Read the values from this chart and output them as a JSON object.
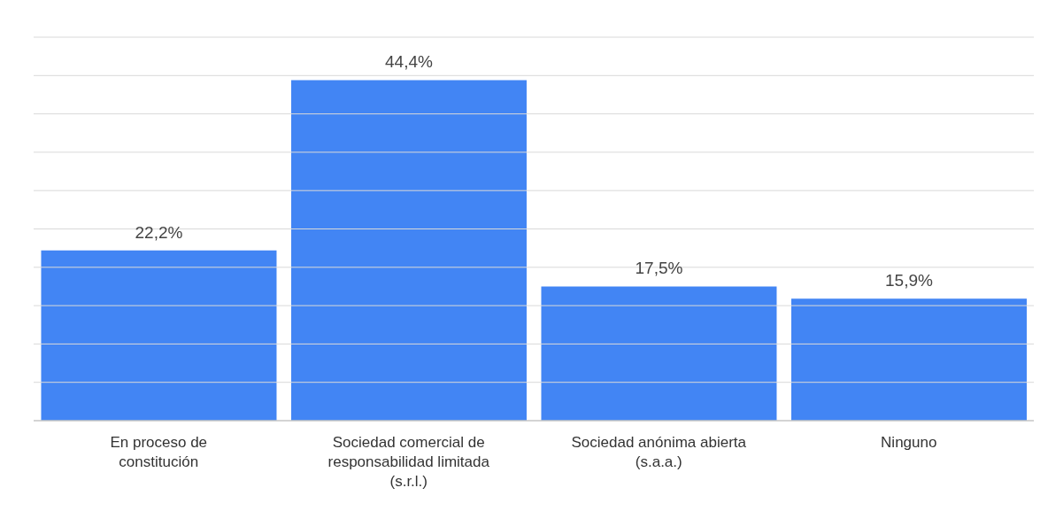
{
  "chart_data": {
    "type": "bar",
    "categories": [
      "En proceso de constitución",
      "Sociedad comercial de responsabilidad limitada (s.r.l.)",
      "Sociedad anónima abierta (s.a.a.)",
      "Ninguno"
    ],
    "values": [
      22.2,
      44.4,
      17.5,
      15.9
    ],
    "value_labels": [
      "22,2%",
      "44,4%",
      "17,5%",
      "15,9%"
    ],
    "color": "#4285f4",
    "ylim": [
      0,
      50
    ],
    "yticks": [
      {
        "value": 0,
        "label": null
      },
      {
        "value": 5,
        "label": null
      },
      {
        "value": 10,
        "label": null
      },
      {
        "value": 15,
        "label": null
      },
      {
        "value": 20,
        "label": null
      },
      {
        "value": 25,
        "label": null
      },
      {
        "value": 30,
        "label": null
      },
      {
        "value": 35,
        "label": null
      },
      {
        "value": 40,
        "label": null
      },
      {
        "value": 45,
        "label": null
      },
      {
        "value": 50,
        "label": null
      }
    ],
    "tick_labels": "x",
    "grid": "y"
  }
}
